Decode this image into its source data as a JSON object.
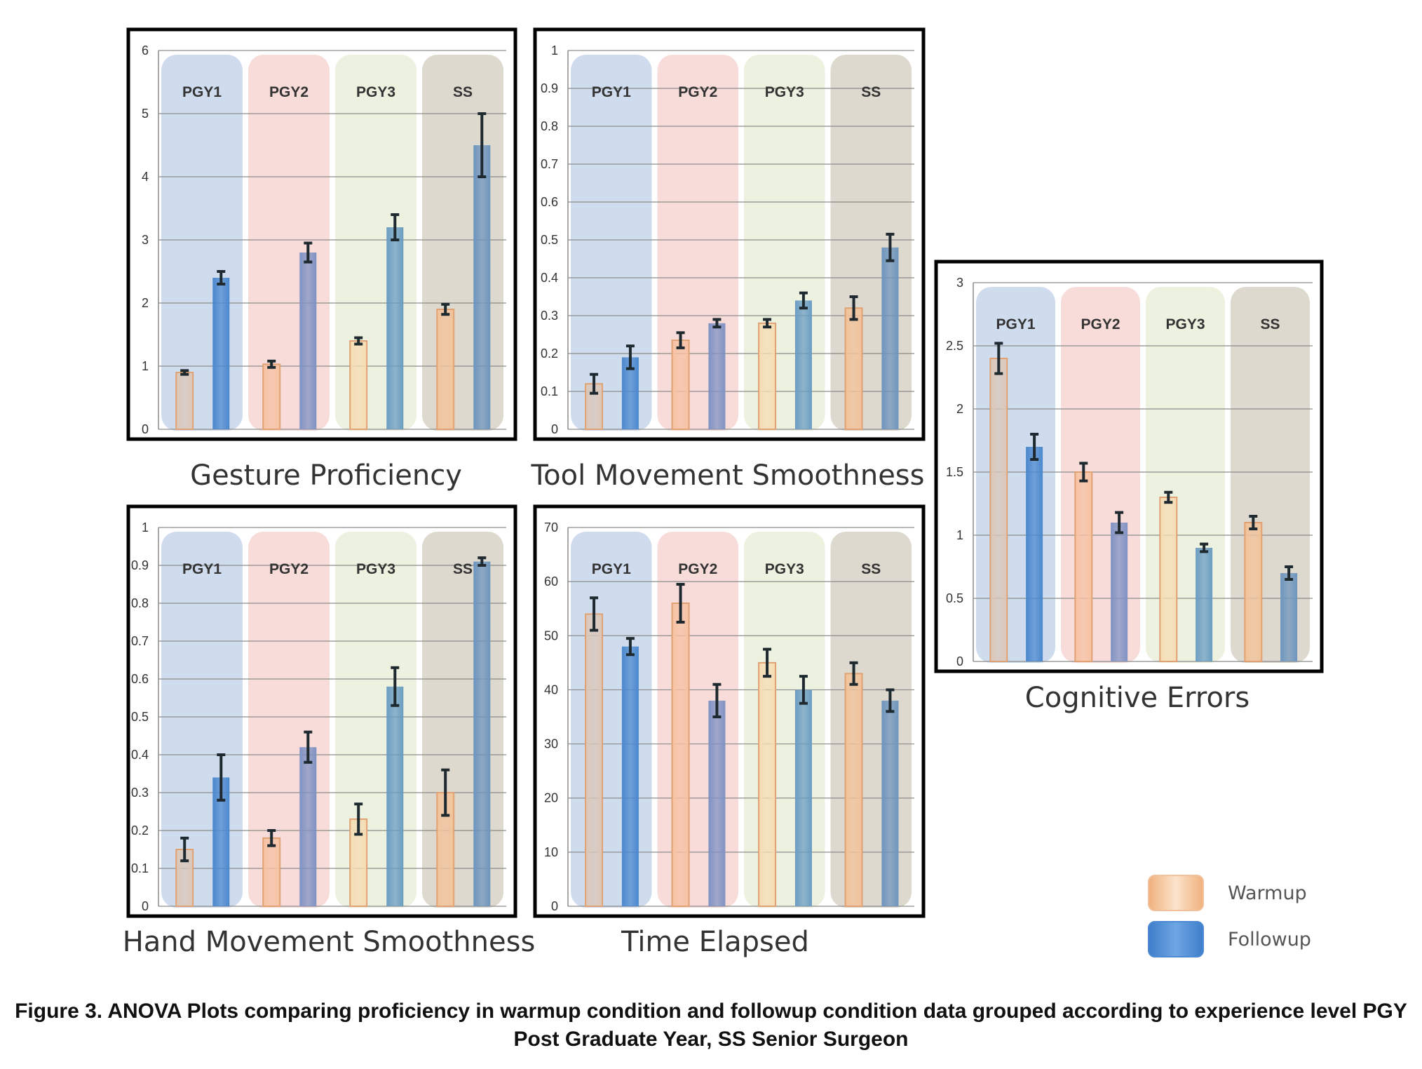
{
  "chart_data": [
    {
      "type": "bar",
      "title": "Gesture Proficiency",
      "categories": [
        "PGY1",
        "PGY2",
        "PGY3",
        "SS"
      ],
      "ylim": [
        0,
        6
      ],
      "yticks": [
        0,
        1,
        2,
        3,
        4,
        5,
        6
      ],
      "yticklabels": [
        "0",
        "1",
        "2",
        "3",
        "4",
        "5",
        "6"
      ],
      "series": [
        {
          "name": "Warmup",
          "values": [
            0.9,
            1.03,
            1.4,
            1.9
          ],
          "errors": [
            0.03,
            0.05,
            0.05,
            0.08
          ]
        },
        {
          "name": "Followup",
          "values": [
            2.4,
            2.8,
            3.2,
            4.5
          ],
          "errors": [
            0.1,
            0.15,
            0.2,
            0.5
          ]
        }
      ]
    },
    {
      "type": "bar",
      "title": "Tool Movement Smoothness",
      "categories": [
        "PGY1",
        "PGY2",
        "PGY3",
        "SS"
      ],
      "ylim": [
        0,
        1
      ],
      "yticks": [
        0,
        0.1,
        0.2,
        0.3,
        0.4,
        0.5,
        0.6,
        0.7,
        0.8,
        0.9,
        1
      ],
      "yticklabels": [
        "0",
        "0.1",
        "0.2",
        "0.3",
        "0.4",
        "0.5",
        "0.6",
        "0.7",
        "0.8",
        "0.9",
        "1"
      ],
      "series": [
        {
          "name": "Warmup",
          "values": [
            0.12,
            0.235,
            0.28,
            0.32
          ],
          "errors": [
            0.025,
            0.02,
            0.01,
            0.03
          ]
        },
        {
          "name": "Followup",
          "values": [
            0.19,
            0.28,
            0.34,
            0.48
          ],
          "errors": [
            0.03,
            0.01,
            0.02,
            0.035
          ]
        }
      ]
    },
    {
      "type": "bar",
      "title": "Cognitive Errors",
      "categories": [
        "PGY1",
        "PGY2",
        "PGY3",
        "SS"
      ],
      "ylim": [
        0,
        3
      ],
      "yticks": [
        0,
        0.5,
        1,
        1.5,
        2,
        2.5,
        3
      ],
      "yticklabels": [
        "0",
        "0.5",
        "1",
        "1.5",
        "2",
        "2.5",
        "3"
      ],
      "series": [
        {
          "name": "Warmup",
          "values": [
            2.4,
            1.5,
            1.3,
            1.1
          ],
          "errors": [
            0.12,
            0.07,
            0.04,
            0.05
          ]
        },
        {
          "name": "Followup",
          "values": [
            1.7,
            1.1,
            0.9,
            0.7
          ],
          "errors": [
            0.1,
            0.08,
            0.03,
            0.05
          ]
        }
      ]
    },
    {
      "type": "bar",
      "title": "Hand Movement Smoothness",
      "categories": [
        "PGY1",
        "PGY2",
        "PGY3",
        "SS"
      ],
      "ylim": [
        0,
        1
      ],
      "yticks": [
        0,
        0.1,
        0.2,
        0.3,
        0.4,
        0.5,
        0.6,
        0.7,
        0.8,
        0.9,
        1
      ],
      "yticklabels": [
        "0",
        "0.1",
        "0.2",
        "0.3",
        "0.4",
        "0.5",
        "0.6",
        "0.7",
        "0.8",
        "0.9",
        "1"
      ],
      "series": [
        {
          "name": "Warmup",
          "values": [
            0.15,
            0.18,
            0.23,
            0.3
          ],
          "errors": [
            0.03,
            0.02,
            0.04,
            0.06
          ]
        },
        {
          "name": "Followup",
          "values": [
            0.34,
            0.42,
            0.58,
            0.91
          ],
          "errors": [
            0.06,
            0.04,
            0.05,
            0.01
          ]
        }
      ]
    },
    {
      "type": "bar",
      "title": "Time Elapsed",
      "categories": [
        "PGY1",
        "PGY2",
        "PGY3",
        "SS"
      ],
      "ylim": [
        0,
        70
      ],
      "yticks": [
        0,
        10,
        20,
        30,
        40,
        50,
        60,
        70
      ],
      "yticklabels": [
        "0",
        "10",
        "20",
        "30",
        "40",
        "50",
        "60",
        "70"
      ],
      "series": [
        {
          "name": "Warmup",
          "values": [
            54,
            56,
            45,
            43
          ],
          "errors": [
            3,
            3.5,
            2.5,
            2
          ]
        },
        {
          "name": "Followup",
          "values": [
            48,
            38,
            40,
            38
          ],
          "errors": [
            1.5,
            3,
            2.5,
            2
          ]
        }
      ]
    }
  ],
  "legend": [
    {
      "label": "Warmup",
      "color": "#f5c59a"
    },
    {
      "label": "Followup",
      "color": "#5b92d2"
    }
  ],
  "group_colors": {
    "PGY1": "#cfdcee",
    "PGY2": "#f7dcda",
    "PGY3": "#edf2e0",
    "SS": "#ddd9cf"
  },
  "warmup_colors": [
    "#dcc7b8",
    "#f7c2a3",
    "#f6dcb3",
    "#f3c39a"
  ],
  "followup_colors": [
    "#4a88cf",
    "#7f92c4",
    "#6a9cc2",
    "#6e95be"
  ],
  "caption": {
    "line1": "Figure 3. ANOVA Plots comparing proficiency in warmup condition and followup condition data grouped according to experience level PGY",
    "line2": "Post Graduate Year, SS Senior Surgeon"
  }
}
